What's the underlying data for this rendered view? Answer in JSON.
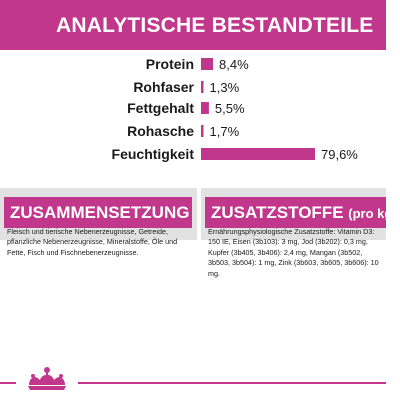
{
  "header": {
    "title": "ANALYTISCHE BESTANDTEILE"
  },
  "chart_data": {
    "type": "bar",
    "categories": [
      "Protein",
      "Rohfaser",
      "Fettgehalt",
      "Rohasche",
      "Feuchtigkeit"
    ],
    "values": [
      8.4,
      1.3,
      5.5,
      1.7,
      79.6
    ],
    "value_labels": [
      "8,4%",
      "1,3%",
      "5,5%",
      "1,7%",
      "79,6%"
    ],
    "orientation": "horizontal",
    "bar_color": "#c1378c",
    "grid": false,
    "title": "",
    "xlabel": "",
    "ylabel": ""
  },
  "composition": {
    "heading": "ZUSAMMENSETZUNG",
    "text": "Fleisch und tierische Nebenerzeugnisse, Getreide, pflanzliche Nebenerzeugnisse, Mineralstoffe, Öle und Fette, Fisch und Fischnebenerzeugnisse."
  },
  "additives": {
    "heading": "ZUSATZSTOFFE",
    "heading_sub": "(pro kg)",
    "text": "Ernährungsphysiologische Zusatzstoffe: Vitamin D3: 150 IE, Eisen (3b103): 3 mg, Jod (3b202): 0,3 mg, Kupfer (3b405, 3b406): 2,4 mg, Mangan (3b502, 3b503, 3b504): 1 mg, Zink (3b603, 3b605, 3b606): 10 mg."
  },
  "colors": {
    "accent": "#c1378c",
    "panel": "#e2e2e2"
  },
  "logo": {
    "icon": "crown-icon"
  }
}
